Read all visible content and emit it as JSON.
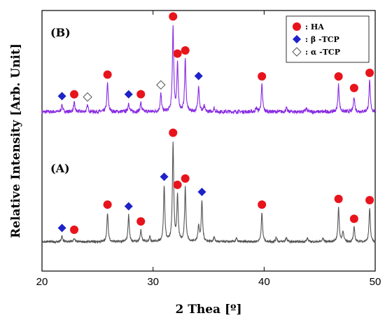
{
  "chart_data": {
    "type": "line",
    "xlabel": "2 Thea [º]",
    "ylabel": "Relative Intensity [Arb. Unit]",
    "xlim": [
      20,
      50
    ],
    "xticks": [
      "20",
      "30",
      "40",
      "50"
    ],
    "yticks": [],
    "grid": false,
    "legend_placement": "top-right",
    "legend": [
      {
        "marker": "circle",
        "label": ": HA",
        "color": "#e8141c"
      },
      {
        "marker": "diamond",
        "label": ": β -TCP",
        "color": "#1e22c8"
      },
      {
        "marker": "open-diamond",
        "label": ": α -TCP",
        "color": "#555555"
      }
    ],
    "series": [
      {
        "label": "(B)",
        "color": "#8a2be2",
        "baseline": 1.55,
        "noise": 0.02,
        "peaks": [
          [
            21.8,
            0.08
          ],
          [
            22.9,
            0.1
          ],
          [
            24.1,
            0.07
          ],
          [
            25.9,
            0.32
          ],
          [
            27.8,
            0.1
          ],
          [
            28.9,
            0.1
          ],
          [
            30.7,
            0.2
          ],
          [
            31.8,
            0.95
          ],
          [
            32.2,
            0.52
          ],
          [
            32.9,
            0.58
          ],
          [
            34.1,
            0.3
          ],
          [
            34.6,
            0.06
          ],
          [
            35.5,
            0.04
          ],
          [
            39.3,
            0.04
          ],
          [
            39.8,
            0.3
          ],
          [
            42.0,
            0.04
          ],
          [
            43.8,
            0.04
          ],
          [
            46.7,
            0.3
          ],
          [
            48.1,
            0.17
          ],
          [
            49.5,
            0.34
          ]
        ],
        "markers": [
          {
            "type": "HA",
            "x": 22.9
          },
          {
            "type": "HA",
            "x": 25.9
          },
          {
            "type": "HA",
            "x": 28.9
          },
          {
            "type": "HA",
            "x": 31.8
          },
          {
            "type": "HA",
            "x": 32.2
          },
          {
            "type": "HA",
            "x": 32.9
          },
          {
            "type": "HA",
            "x": 39.8
          },
          {
            "type": "HA",
            "x": 46.7
          },
          {
            "type": "HA",
            "x": 48.1
          },
          {
            "type": "HA",
            "x": 49.5
          },
          {
            "type": "beta-TCP",
            "x": 21.8
          },
          {
            "type": "beta-TCP",
            "x": 27.8
          },
          {
            "type": "beta-TCP",
            "x": 34.1
          },
          {
            "type": "alpha-TCP",
            "x": 24.1
          },
          {
            "type": "alpha-TCP",
            "x": 30.7
          }
        ]
      },
      {
        "label": "(A)",
        "color": "#555555",
        "baseline": 0.1,
        "noise": 0.012,
        "peaks": [
          [
            21.8,
            0.06
          ],
          [
            22.9,
            0.04
          ],
          [
            25.9,
            0.32
          ],
          [
            27.8,
            0.3
          ],
          [
            28.9,
            0.13
          ],
          [
            29.7,
            0.06
          ],
          [
            31.0,
            0.62
          ],
          [
            31.8,
            1.1
          ],
          [
            32.2,
            0.5
          ],
          [
            32.9,
            0.6
          ],
          [
            34.1,
            0.18
          ],
          [
            34.4,
            0.45
          ],
          [
            35.5,
            0.05
          ],
          [
            37.5,
            0.04
          ],
          [
            39.8,
            0.32
          ],
          [
            41.1,
            0.05
          ],
          [
            42.0,
            0.05
          ],
          [
            43.9,
            0.04
          ],
          [
            45.3,
            0.04
          ],
          [
            46.7,
            0.38
          ],
          [
            47.1,
            0.12
          ],
          [
            48.1,
            0.16
          ],
          [
            49.5,
            0.37
          ]
        ],
        "markers": [
          {
            "type": "HA",
            "x": 22.9
          },
          {
            "type": "HA",
            "x": 25.9
          },
          {
            "type": "HA",
            "x": 28.9
          },
          {
            "type": "HA",
            "x": 31.8
          },
          {
            "type": "HA",
            "x": 32.2
          },
          {
            "type": "HA",
            "x": 32.9
          },
          {
            "type": "HA",
            "x": 39.8
          },
          {
            "type": "HA",
            "x": 46.7
          },
          {
            "type": "HA",
            "x": 48.1
          },
          {
            "type": "HA",
            "x": 49.5
          },
          {
            "type": "beta-TCP",
            "x": 21.8
          },
          {
            "type": "beta-TCP",
            "x": 27.8
          },
          {
            "type": "beta-TCP",
            "x": 31.0
          },
          {
            "type": "beta-TCP",
            "x": 34.4
          }
        ]
      }
    ]
  }
}
